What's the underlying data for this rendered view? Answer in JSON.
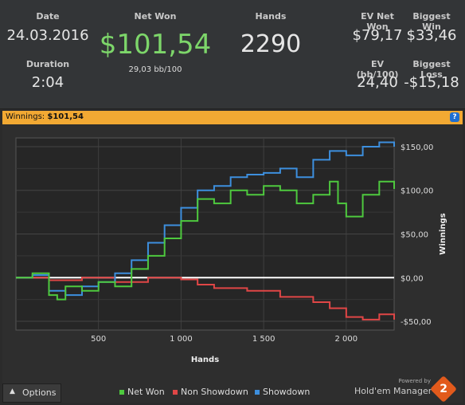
{
  "stats": {
    "date_label": "Date",
    "date_value": "24.03.2016",
    "duration_label": "Duration",
    "duration_value": "2:04",
    "net_won_label": "Net Won",
    "net_won_value": "$101,54",
    "net_won_sub": "29,03 bb/100",
    "hands_label": "Hands",
    "hands_value": "2290",
    "ev_net_won_label": "EV Net Won",
    "ev_net_won_value": "$79,17",
    "biggest_win_label": "Biggest Win",
    "biggest_win_value": "$33,46",
    "ev_bb100_label": "EV (bb/100)",
    "ev_bb100_value": "24,40",
    "biggest_loss_label": "Biggest Loss",
    "biggest_loss_value": "-$15,18"
  },
  "bar": {
    "label": "Winnings:",
    "value": "$101,54",
    "help_icon": "?"
  },
  "options": {
    "label": "Options",
    "icon": "chevron-up-icon"
  },
  "legend": {
    "net_won": "Net Won",
    "non_showdown": "Non Showdown",
    "showdown": "Showdown"
  },
  "brand": {
    "powered_by": "Powered by",
    "name": "Hold'em Manager",
    "logo_number": "2"
  },
  "colors": {
    "net_won": "#4ec93e",
    "non_showdown": "#e04646",
    "showdown": "#3d8fde",
    "accent_bar": "#f2a933"
  },
  "chart_data": {
    "type": "line",
    "xlabel": "Hands",
    "ylabel": "Winnings",
    "xlim": [
      0,
      2290
    ],
    "ylim": [
      -60,
      160
    ],
    "x_ticks": [
      500,
      1000,
      1500,
      2000
    ],
    "x_tick_labels": [
      "500",
      "1 000",
      "1 500",
      "2 000"
    ],
    "y_ticks": [
      -50,
      0,
      50,
      100,
      150
    ],
    "y_tick_labels": [
      "-$50,00",
      "$0,00",
      "$50,00",
      "$100,00",
      "$150,00"
    ],
    "grid": true,
    "series": [
      {
        "name": "Net Won",
        "x": [
          0,
          100,
          200,
          250,
          300,
          400,
          500,
          600,
          700,
          800,
          900,
          1000,
          1100,
          1200,
          1300,
          1400,
          1500,
          1600,
          1700,
          1800,
          1900,
          1950,
          2000,
          2100,
          2200,
          2290
        ],
        "y": [
          0,
          5,
          -20,
          -25,
          -10,
          -15,
          -5,
          -10,
          10,
          25,
          45,
          65,
          90,
          85,
          100,
          95,
          105,
          100,
          85,
          95,
          110,
          85,
          70,
          95,
          110,
          101.54
        ]
      },
      {
        "name": "Non Showdown",
        "x": [
          0,
          200,
          400,
          600,
          800,
          1000,
          1100,
          1200,
          1400,
          1600,
          1800,
          1900,
          2000,
          2100,
          2200,
          2290
        ],
        "y": [
          0,
          -3,
          0,
          -5,
          0,
          -2,
          -8,
          -12,
          -15,
          -22,
          -28,
          -35,
          -45,
          -48,
          -42,
          -48
        ]
      },
      {
        "name": "Showdown",
        "x": [
          0,
          100,
          200,
          300,
          400,
          500,
          600,
          700,
          800,
          900,
          1000,
          1100,
          1200,
          1300,
          1400,
          1500,
          1600,
          1700,
          1800,
          1900,
          2000,
          2100,
          2200,
          2290
        ],
        "y": [
          0,
          3,
          -15,
          -20,
          -10,
          -5,
          5,
          20,
          40,
          60,
          80,
          100,
          105,
          115,
          118,
          120,
          125,
          115,
          135,
          145,
          140,
          150,
          155,
          150
        ]
      }
    ]
  }
}
